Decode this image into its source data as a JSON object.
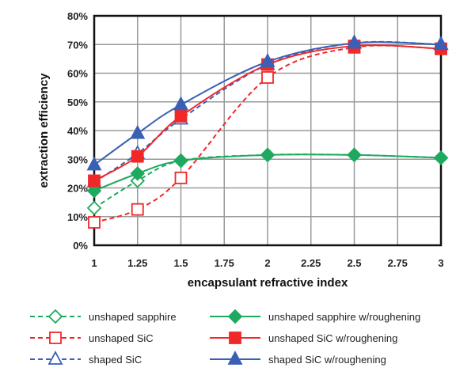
{
  "chart_data": {
    "type": "line",
    "title": "",
    "xlabel": "encapsulant refractive index",
    "ylabel": "extraction efficiency",
    "xlim": [
      1,
      3
    ],
    "ylim": [
      0,
      80
    ],
    "xticks": [
      "1",
      "1.25",
      "1.5",
      "1.75",
      "2",
      "2.25",
      "2.5",
      "2.75",
      "3"
    ],
    "yticks": [
      "0%",
      "10%",
      "20%",
      "30%",
      "40%",
      "50%",
      "60%",
      "70%",
      "80%"
    ],
    "grid": true,
    "legend_position": "bottom",
    "x": [
      1,
      1.25,
      1.5,
      2,
      2.5,
      3
    ],
    "series": [
      {
        "name": "unshaped sapphire",
        "color": "#1daa5e",
        "dash": true,
        "marker": "diamond-open",
        "values": [
          13,
          22.5,
          29.5,
          31.5,
          31.5,
          30.5
        ]
      },
      {
        "name": "unshaped sapphire w/roughening",
        "color": "#1daa5e",
        "dash": false,
        "marker": "diamond-filled",
        "values": [
          19,
          25,
          29.5,
          31.5,
          31.5,
          30.5
        ]
      },
      {
        "name": "unshaped SiC",
        "color": "#f02828",
        "dash": true,
        "marker": "square-open",
        "values": [
          8,
          12.5,
          23.5,
          58.5,
          69,
          68.5
        ]
      },
      {
        "name": "unshaped SiC w/roughening",
        "color": "#f02828",
        "dash": false,
        "marker": "square-filled",
        "values": [
          22.5,
          31,
          45,
          63,
          69.5,
          68.5
        ]
      },
      {
        "name": "shaped SiC",
        "color": "#3a5fb5",
        "dash": true,
        "marker": "triangle-open",
        "values": [
          22,
          32,
          44,
          63,
          70.5,
          70
        ]
      },
      {
        "name": "shaped SiC w/roughening",
        "color": "#3a5fb5",
        "dash": false,
        "marker": "triangle-filled",
        "values": [
          28,
          39,
          49,
          64,
          70.5,
          70
        ]
      }
    ]
  }
}
